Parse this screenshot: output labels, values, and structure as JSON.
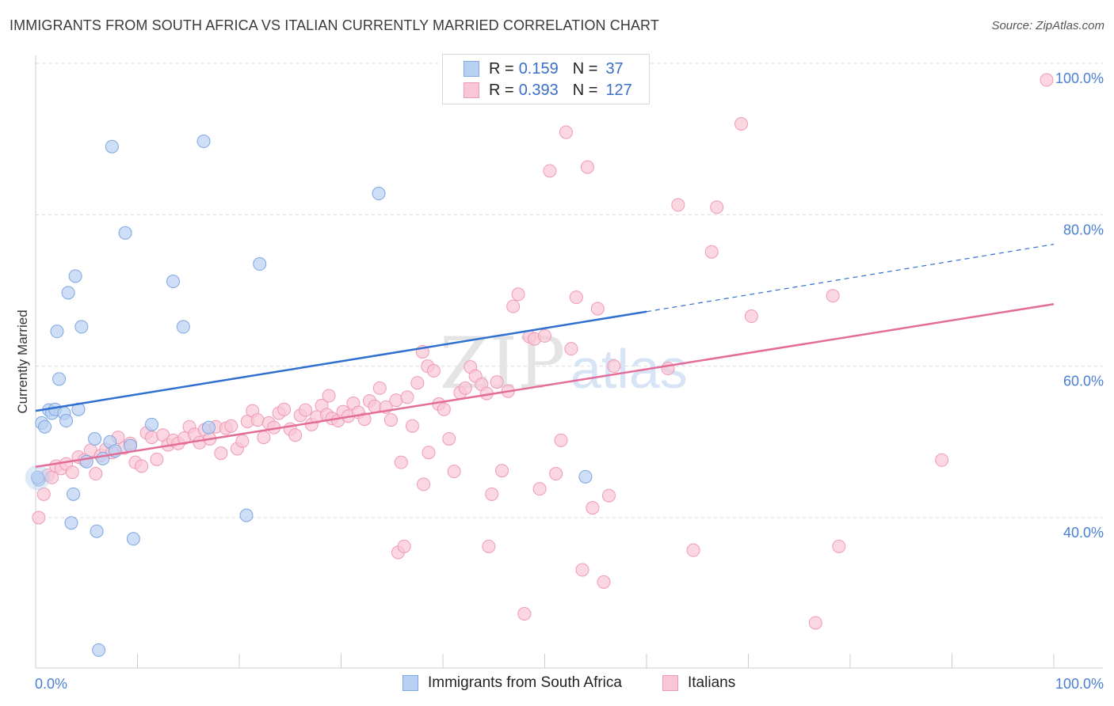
{
  "header": {
    "title": "IMMIGRANTS FROM SOUTH AFRICA VS ITALIAN CURRENTLY MARRIED CORRELATION CHART",
    "source": "Source: ZipAtlas.com"
  },
  "legend_top": {
    "rows": [
      {
        "r_label": "R =",
        "r_value": "0.159",
        "n_label": "N =",
        "n_value": "37"
      },
      {
        "r_label": "R =",
        "r_value": "0.393",
        "n_label": "N =",
        "n_value": "127"
      }
    ]
  },
  "legend_bottom": {
    "items": [
      "Immigrants from South Africa",
      "Italians"
    ]
  },
  "watermark": {
    "zip": "ZIP",
    "atlas": "atlas"
  },
  "colors": {
    "blue_fill": "#b8d0f2",
    "blue_stroke": "#7ea6e0",
    "blue_line": "#2f6fd0",
    "pink_fill": "#f9c6d6",
    "pink_stroke": "#ef9ab5",
    "pink_line": "#e36d98",
    "tick_text": "#4a7fd4",
    "grid": "#dcdcdc"
  },
  "chart_data": {
    "type": "scatter",
    "title": "IMMIGRANTS FROM SOUTH AFRICA VS ITALIAN CURRENTLY MARRIED CORRELATION CHART",
    "xlabel": "",
    "ylabel": "Currently Married",
    "xlim": [
      0,
      100
    ],
    "ylim": [
      22,
      102
    ],
    "x_tick_labels": [
      "0.0%",
      "100.0%"
    ],
    "y_ticks": [
      40,
      60,
      80,
      100
    ],
    "y_tick_labels": [
      "40.0%",
      "60.0%",
      "80.0%",
      "100.0%"
    ],
    "grid": true,
    "legend_position": "top-center",
    "series": [
      {
        "name": "Immigrants from South Africa",
        "color": "blue",
        "trend": {
          "x": [
            0,
            60
          ],
          "y": [
            54.1,
            67.2
          ],
          "dashed_to": [
            100,
            76.1
          ]
        },
        "points": [
          [
            0.3,
            45.0
          ],
          [
            0.6,
            52.5
          ],
          [
            0.9,
            52.0
          ],
          [
            1.3,
            54.2
          ],
          [
            1.6,
            53.8
          ],
          [
            1.9,
            54.3
          ],
          [
            2.1,
            64.6
          ],
          [
            2.3,
            58.3
          ],
          [
            2.8,
            53.8
          ],
          [
            3.0,
            52.8
          ],
          [
            3.2,
            69.7
          ],
          [
            3.5,
            39.3
          ],
          [
            3.7,
            43.1
          ],
          [
            3.9,
            71.9
          ],
          [
            4.2,
            54.3
          ],
          [
            4.5,
            65.2
          ],
          [
            5.0,
            47.4
          ],
          [
            5.8,
            50.4
          ],
          [
            6.0,
            38.2
          ],
          [
            6.2,
            22.5
          ],
          [
            6.6,
            47.8
          ],
          [
            7.3,
            50.0
          ],
          [
            7.5,
            89.0
          ],
          [
            7.8,
            48.8
          ],
          [
            8.8,
            77.6
          ],
          [
            9.3,
            49.5
          ],
          [
            9.6,
            37.2
          ],
          [
            11.4,
            52.3
          ],
          [
            13.5,
            71.2
          ],
          [
            14.5,
            65.2
          ],
          [
            16.5,
            89.7
          ],
          [
            17.0,
            51.9
          ],
          [
            20.7,
            40.3
          ],
          [
            22.0,
            73.5
          ],
          [
            33.7,
            82.8
          ],
          [
            54.0,
            45.4
          ],
          [
            0.2,
            45.3
          ]
        ]
      },
      {
        "name": "Italians",
        "color": "pink",
        "trend": {
          "x": [
            0,
            100
          ],
          "y": [
            46.7,
            68.2
          ]
        },
        "points": [
          [
            0.3,
            40.0
          ],
          [
            0.8,
            43.1
          ],
          [
            1.2,
            45.6
          ],
          [
            1.6,
            45.3
          ],
          [
            2.0,
            46.8
          ],
          [
            2.5,
            46.5
          ],
          [
            3.0,
            47.1
          ],
          [
            3.6,
            46.0
          ],
          [
            4.2,
            48.0
          ],
          [
            4.8,
            47.6
          ],
          [
            5.4,
            48.9
          ],
          [
            5.9,
            45.8
          ],
          [
            6.4,
            48.2
          ],
          [
            6.9,
            49.0
          ],
          [
            7.5,
            48.6
          ],
          [
            8.1,
            50.6
          ],
          [
            8.7,
            49.2
          ],
          [
            9.3,
            49.8
          ],
          [
            9.8,
            47.3
          ],
          [
            10.4,
            46.8
          ],
          [
            10.9,
            51.2
          ],
          [
            11.4,
            50.6
          ],
          [
            11.9,
            47.7
          ],
          [
            12.5,
            50.9
          ],
          [
            13.0,
            49.6
          ],
          [
            13.5,
            50.2
          ],
          [
            14.0,
            49.8
          ],
          [
            14.6,
            50.5
          ],
          [
            15.1,
            52.0
          ],
          [
            15.6,
            51.0
          ],
          [
            16.1,
            49.9
          ],
          [
            16.6,
            51.6
          ],
          [
            17.1,
            50.4
          ],
          [
            17.7,
            52.0
          ],
          [
            18.2,
            48.5
          ],
          [
            18.7,
            51.8
          ],
          [
            19.2,
            52.1
          ],
          [
            19.8,
            49.1
          ],
          [
            20.3,
            50.1
          ],
          [
            20.8,
            52.7
          ],
          [
            21.3,
            54.1
          ],
          [
            21.8,
            52.9
          ],
          [
            22.4,
            50.6
          ],
          [
            22.9,
            52.5
          ],
          [
            23.4,
            51.9
          ],
          [
            23.9,
            53.8
          ],
          [
            24.4,
            54.3
          ],
          [
            25.0,
            51.7
          ],
          [
            25.5,
            50.9
          ],
          [
            26.0,
            53.5
          ],
          [
            26.5,
            54.2
          ],
          [
            27.1,
            52.3
          ],
          [
            27.6,
            53.3
          ],
          [
            28.1,
            54.8
          ],
          [
            28.6,
            53.6
          ],
          [
            29.1,
            53.1
          ],
          [
            29.7,
            52.8
          ],
          [
            30.2,
            54.0
          ],
          [
            30.7,
            53.4
          ],
          [
            31.2,
            55.1
          ],
          [
            31.7,
            53.9
          ],
          [
            32.3,
            53.0
          ],
          [
            32.8,
            55.4
          ],
          [
            33.3,
            54.7
          ],
          [
            33.8,
            57.1
          ],
          [
            34.4,
            54.6
          ],
          [
            34.9,
            52.9
          ],
          [
            35.4,
            55.5
          ],
          [
            35.9,
            47.3
          ],
          [
            36.5,
            55.9
          ],
          [
            37.0,
            52.1
          ],
          [
            37.5,
            57.8
          ],
          [
            38.0,
            61.9
          ],
          [
            38.5,
            60.0
          ],
          [
            39.1,
            59.4
          ],
          [
            39.6,
            55.0
          ],
          [
            40.1,
            54.3
          ],
          [
            40.6,
            50.4
          ],
          [
            41.1,
            46.1
          ],
          [
            41.7,
            56.5
          ],
          [
            42.2,
            57.1
          ],
          [
            42.7,
            59.9
          ],
          [
            43.2,
            58.7
          ],
          [
            43.8,
            57.6
          ],
          [
            44.3,
            56.4
          ],
          [
            44.8,
            43.1
          ],
          [
            45.3,
            57.9
          ],
          [
            45.8,
            46.2
          ],
          [
            46.4,
            56.7
          ],
          [
            46.9,
            67.9
          ],
          [
            47.4,
            69.5
          ],
          [
            48.0,
            27.3
          ],
          [
            48.5,
            63.9
          ],
          [
            49.0,
            63.6
          ],
          [
            49.5,
            43.8
          ],
          [
            50.0,
            64.0
          ],
          [
            50.5,
            85.8
          ],
          [
            51.1,
            45.8
          ],
          [
            51.6,
            50.2
          ],
          [
            52.1,
            90.9
          ],
          [
            52.6,
            62.3
          ],
          [
            53.1,
            69.1
          ],
          [
            53.7,
            33.1
          ],
          [
            54.2,
            86.3
          ],
          [
            54.7,
            41.3
          ],
          [
            55.2,
            67.6
          ],
          [
            55.8,
            31.5
          ],
          [
            56.3,
            42.9
          ],
          [
            56.8,
            60.0
          ],
          [
            62.1,
            59.7
          ],
          [
            63.1,
            81.3
          ],
          [
            64.6,
            35.7
          ],
          [
            66.4,
            75.1
          ],
          [
            66.9,
            81.0
          ],
          [
            69.3,
            92.0
          ],
          [
            70.3,
            66.6
          ],
          [
            76.6,
            26.1
          ],
          [
            78.3,
            69.3
          ],
          [
            78.9,
            36.2
          ],
          [
            89.0,
            47.6
          ],
          [
            99.3,
            97.8
          ],
          [
            35.6,
            35.4
          ],
          [
            36.2,
            36.2
          ],
          [
            44.5,
            36.2
          ],
          [
            38.1,
            44.4
          ],
          [
            38.6,
            48.6
          ],
          [
            28.8,
            56.1
          ]
        ]
      }
    ]
  }
}
